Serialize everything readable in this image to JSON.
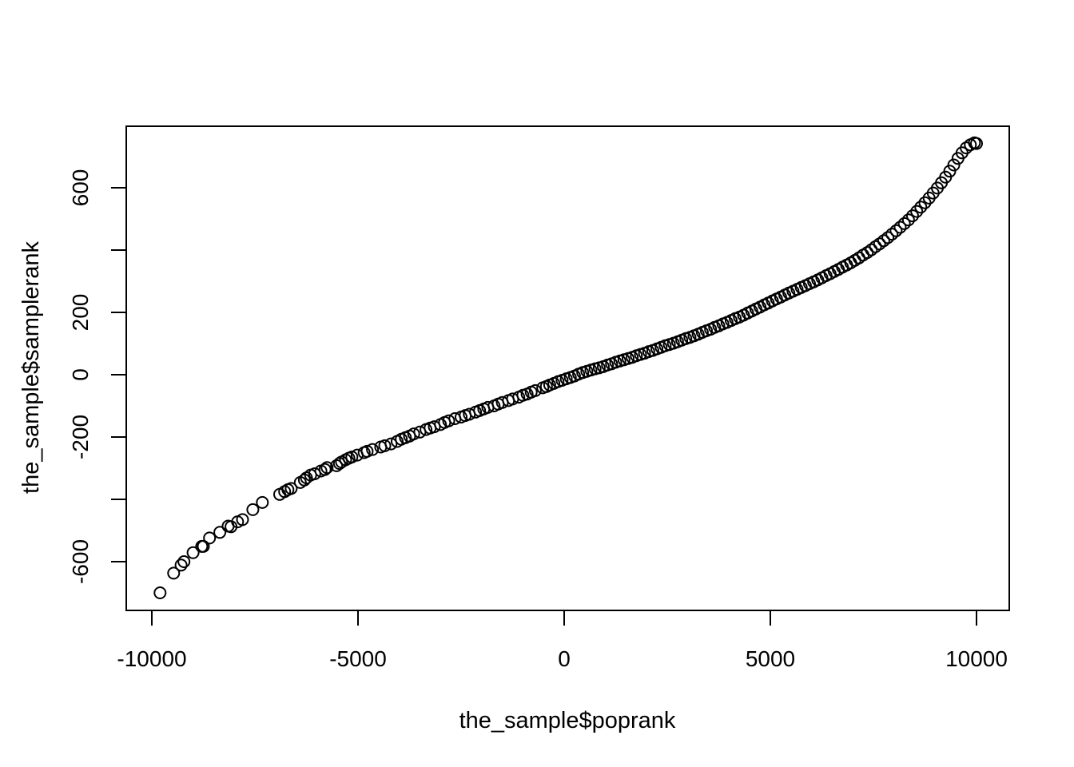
{
  "chart_data": {
    "type": "scatter",
    "title": "",
    "xlabel": "the_sample$poprank",
    "ylabel": "the_sample$samplerank",
    "xlim": [
      -10000,
      10000
    ],
    "ylim": [
      -700,
      750
    ],
    "x_ticks": [
      -10000,
      -5000,
      0,
      5000,
      10000
    ],
    "x_tick_labels": [
      "-10000",
      "-5000",
      "0",
      "5000",
      "10000"
    ],
    "y_ticks": [
      -600,
      -400,
      -200,
      0,
      200,
      400,
      600
    ],
    "y_tick_labels": [
      "-600",
      "",
      "-200",
      "0",
      "200",
      "",
      "600"
    ],
    "grid": false,
    "legend": "none",
    "marker": "open-circle",
    "colors": {
      "points": "#000000",
      "axes": "#000000",
      "background": "#ffffff"
    },
    "series": [
      {
        "points": [
          [
            -9800,
            -700
          ],
          [
            -9470,
            -637
          ],
          [
            -9290,
            -611
          ],
          [
            -9220,
            -600
          ],
          [
            -9000,
            -571
          ],
          [
            -8790,
            -551
          ],
          [
            -8750,
            -551
          ],
          [
            -8600,
            -524
          ],
          [
            -8350,
            -506
          ],
          [
            -8150,
            -486
          ],
          [
            -8080,
            -488
          ],
          [
            -7920,
            -472
          ],
          [
            -7800,
            -465
          ],
          [
            -7550,
            -433
          ],
          [
            -7320,
            -410
          ],
          [
            -6900,
            -384
          ],
          [
            -6780,
            -375
          ],
          [
            -6700,
            -369
          ],
          [
            -6620,
            -365
          ],
          [
            -6400,
            -346
          ],
          [
            -6300,
            -338
          ],
          [
            -6250,
            -331
          ],
          [
            -6150,
            -322
          ],
          [
            -6050,
            -318
          ],
          [
            -5900,
            -309
          ],
          [
            -5800,
            -304
          ],
          [
            -5750,
            -298
          ],
          [
            -5520,
            -292
          ],
          [
            -5450,
            -285
          ],
          [
            -5400,
            -280
          ],
          [
            -5300,
            -273
          ],
          [
            -5220,
            -268
          ],
          [
            -5150,
            -264
          ],
          [
            -5020,
            -258
          ],
          [
            -4850,
            -250
          ],
          [
            -4780,
            -246
          ],
          [
            -4650,
            -240
          ],
          [
            -4450,
            -232
          ],
          [
            -4350,
            -228
          ],
          [
            -4200,
            -222
          ],
          [
            -4050,
            -214
          ],
          [
            -3950,
            -207
          ],
          [
            -3850,
            -202
          ],
          [
            -3750,
            -197
          ],
          [
            -3650,
            -190
          ],
          [
            -3500,
            -184
          ],
          [
            -3350,
            -176
          ],
          [
            -3250,
            -171
          ],
          [
            -3150,
            -167
          ],
          [
            -3000,
            -160
          ],
          [
            -2900,
            -153
          ],
          [
            -2800,
            -148
          ],
          [
            -2650,
            -141
          ],
          [
            -2500,
            -136
          ],
          [
            -2400,
            -131
          ],
          [
            -2300,
            -127
          ],
          [
            -2150,
            -120
          ],
          [
            -2050,
            -115
          ],
          [
            -1950,
            -110
          ],
          [
            -1850,
            -105
          ],
          [
            -1700,
            -100
          ],
          [
            -1600,
            -94
          ],
          [
            -1500,
            -89
          ],
          [
            -1350,
            -83
          ],
          [
            -1250,
            -78
          ],
          [
            -1100,
            -72
          ],
          [
            -1000,
            -66
          ],
          [
            -900,
            -62
          ],
          [
            -800,
            -56
          ],
          [
            -700,
            -51
          ],
          [
            -520,
            -42
          ],
          [
            -430,
            -38
          ],
          [
            -350,
            -33
          ],
          [
            -250,
            -28
          ],
          [
            -150,
            -22
          ],
          [
            -50,
            -18
          ],
          [
            50,
            -13
          ],
          [
            150,
            -9
          ],
          [
            250,
            -4
          ],
          [
            350,
            2
          ],
          [
            450,
            7
          ],
          [
            550,
            11
          ],
          [
            650,
            15
          ],
          [
            750,
            19
          ],
          [
            850,
            22
          ],
          [
            950,
            26
          ],
          [
            1050,
            31
          ],
          [
            1150,
            35
          ],
          [
            1250,
            40
          ],
          [
            1350,
            44
          ],
          [
            1450,
            48
          ],
          [
            1550,
            52
          ],
          [
            1650,
            56
          ],
          [
            1750,
            61
          ],
          [
            1850,
            65
          ],
          [
            1950,
            69
          ],
          [
            2050,
            74
          ],
          [
            2150,
            78
          ],
          [
            2250,
            83
          ],
          [
            2350,
            88
          ],
          [
            2450,
            93
          ],
          [
            2550,
            97
          ],
          [
            2650,
            101
          ],
          [
            2750,
            106
          ],
          [
            2850,
            111
          ],
          [
            2950,
            116
          ],
          [
            3050,
            120
          ],
          [
            3150,
            125
          ],
          [
            3250,
            130
          ],
          [
            3350,
            136
          ],
          [
            3450,
            141
          ],
          [
            3550,
            146
          ],
          [
            3650,
            152
          ],
          [
            3750,
            157
          ],
          [
            3850,
            163
          ],
          [
            3950,
            168
          ],
          [
            4050,
            174
          ],
          [
            4150,
            180
          ],
          [
            4250,
            185
          ],
          [
            4350,
            191
          ],
          [
            4450,
            198
          ],
          [
            4550,
            204
          ],
          [
            4650,
            211
          ],
          [
            4750,
            217
          ],
          [
            4850,
            224
          ],
          [
            4950,
            230
          ],
          [
            5050,
            237
          ],
          [
            5150,
            243
          ],
          [
            5250,
            249
          ],
          [
            5350,
            256
          ],
          [
            5450,
            262
          ],
          [
            5550,
            268
          ],
          [
            5650,
            274
          ],
          [
            5750,
            280
          ],
          [
            5850,
            286
          ],
          [
            5950,
            292
          ],
          [
            6050,
            298
          ],
          [
            6150,
            304
          ],
          [
            6250,
            311
          ],
          [
            6350,
            318
          ],
          [
            6450,
            324
          ],
          [
            6550,
            331
          ],
          [
            6650,
            338
          ],
          [
            6750,
            345
          ],
          [
            6850,
            352
          ],
          [
            6950,
            359
          ],
          [
            7050,
            367
          ],
          [
            7150,
            375
          ],
          [
            7250,
            384
          ],
          [
            7350,
            392
          ],
          [
            7450,
            401
          ],
          [
            7550,
            411
          ],
          [
            7650,
            420
          ],
          [
            7750,
            430
          ],
          [
            7850,
            440
          ],
          [
            7950,
            451
          ],
          [
            8050,
            462
          ],
          [
            8150,
            473
          ],
          [
            8250,
            485
          ],
          [
            8350,
            497
          ],
          [
            8450,
            510
          ],
          [
            8550,
            524
          ],
          [
            8650,
            538
          ],
          [
            8750,
            552
          ],
          [
            8850,
            567
          ],
          [
            8950,
            583
          ],
          [
            9050,
            599
          ],
          [
            9150,
            616
          ],
          [
            9250,
            634
          ],
          [
            9350,
            653
          ],
          [
            9450,
            673
          ],
          [
            9550,
            694
          ],
          [
            9650,
            712
          ],
          [
            9750,
            728
          ],
          [
            9850,
            738
          ],
          [
            9950,
            744
          ],
          [
            10000,
            742
          ]
        ]
      }
    ]
  }
}
